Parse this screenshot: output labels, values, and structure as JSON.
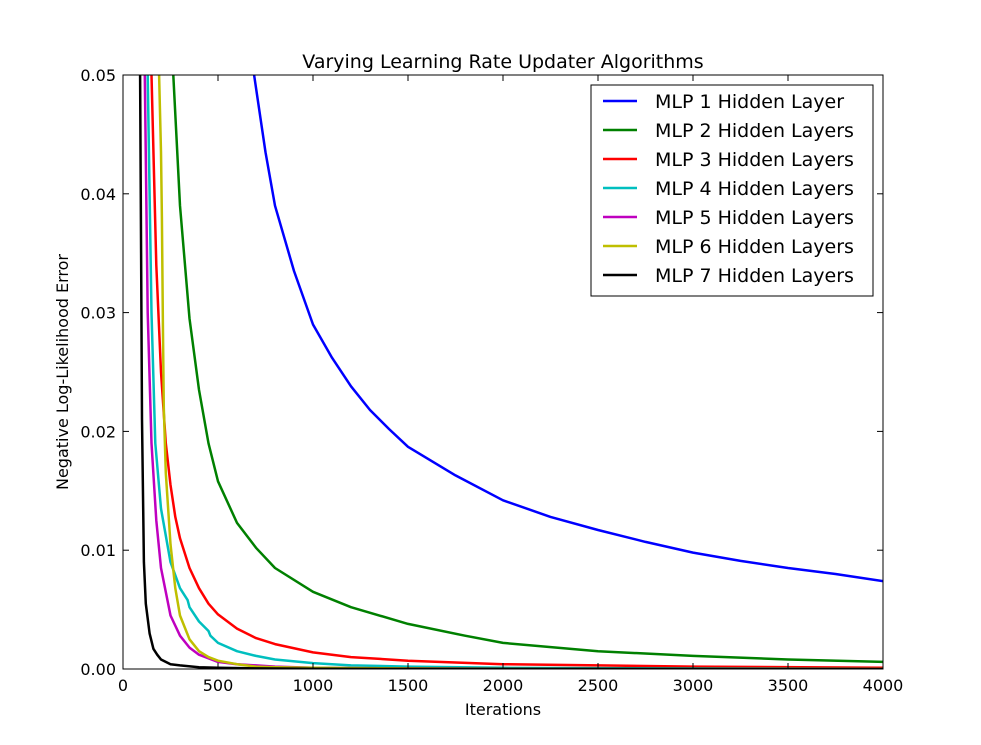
{
  "chart_data": {
    "type": "line",
    "title": "Varying Learning Rate Updater Algorithms",
    "xlabel": "Iterations",
    "ylabel": "Negative Log-Likelihood Error",
    "xlim": [
      0,
      4000
    ],
    "ylim": [
      0,
      0.05
    ],
    "xticks": [
      0,
      500,
      1000,
      1500,
      2000,
      2500,
      3000,
      3500,
      4000
    ],
    "yticks": [
      0.0,
      0.01,
      0.02,
      0.03,
      0.04,
      0.05
    ],
    "xtick_labels": [
      "0",
      "500",
      "1000",
      "1500",
      "2000",
      "2500",
      "3000",
      "3500",
      "4000"
    ],
    "ytick_labels": [
      "0.00",
      "0.01",
      "0.02",
      "0.03",
      "0.04",
      "0.05"
    ],
    "grid": false,
    "legend_position": "top-right",
    "series": [
      {
        "name": "MLP 1 Hidden Layer",
        "color": "#0000ff",
        "x": [
          690,
          750,
          800,
          900,
          1000,
          1100,
          1200,
          1300,
          1400,
          1500,
          1750,
          2000,
          2250,
          2500,
          2750,
          3000,
          3250,
          3500,
          3750,
          4000
        ],
        "y": [
          0.05,
          0.0435,
          0.039,
          0.0335,
          0.029,
          0.0262,
          0.0238,
          0.0218,
          0.0202,
          0.0187,
          0.0163,
          0.0142,
          0.0128,
          0.0117,
          0.0107,
          0.0098,
          0.0091,
          0.0085,
          0.008,
          0.0074
        ]
      },
      {
        "name": "MLP 2 Hidden Layers",
        "color": "#008000",
        "x": [
          265,
          300,
          350,
          400,
          450,
          500,
          600,
          700,
          800,
          1000,
          1200,
          1500,
          1800,
          2000,
          2500,
          3000,
          3500,
          4000
        ],
        "y": [
          0.05,
          0.039,
          0.0295,
          0.0235,
          0.019,
          0.0158,
          0.0123,
          0.0102,
          0.0085,
          0.0065,
          0.0052,
          0.0038,
          0.0028,
          0.0022,
          0.0015,
          0.0011,
          0.0008,
          0.0006
        ]
      },
      {
        "name": "MLP 3 Hidden Layers",
        "color": "#ff0000",
        "x": [
          150,
          175,
          200,
          225,
          250,
          275,
          300,
          350,
          400,
          450,
          500,
          600,
          700,
          800,
          1000,
          1200,
          1500,
          2000,
          2500,
          3000,
          4000
        ],
        "y": [
          0.05,
          0.034,
          0.025,
          0.019,
          0.0155,
          0.0128,
          0.011,
          0.0085,
          0.0068,
          0.0055,
          0.0046,
          0.0034,
          0.0026,
          0.0021,
          0.0014,
          0.001,
          0.0007,
          0.0004,
          0.0003,
          0.0002,
          0.0001
        ]
      },
      {
        "name": "MLP 4 Hidden Layers",
        "color": "#00bfbf",
        "x": [
          130,
          150,
          170,
          200,
          250,
          300,
          340,
          350,
          400,
          450,
          460,
          500,
          600,
          700,
          800,
          1000,
          1200,
          1500,
          2000,
          3000,
          4000
        ],
        "y": [
          0.05,
          0.03,
          0.019,
          0.0135,
          0.009,
          0.0068,
          0.0058,
          0.0052,
          0.004,
          0.0032,
          0.0028,
          0.0022,
          0.0015,
          0.0011,
          0.0008,
          0.0005,
          0.0003,
          0.0002,
          0.0001,
          5e-05,
          2e-05
        ]
      },
      {
        "name": "MLP 5 Hidden Layers",
        "color": "#bf00bf",
        "x": [
          115,
          130,
          150,
          175,
          200,
          250,
          300,
          350,
          400,
          500,
          600,
          700,
          800,
          1000,
          1500,
          2000,
          4000
        ],
        "y": [
          0.05,
          0.03,
          0.019,
          0.0125,
          0.0085,
          0.0045,
          0.0028,
          0.0018,
          0.0012,
          0.0006,
          0.0004,
          0.0003,
          0.0002,
          0.0001,
          5e-05,
          2e-05,
          1e-05
        ]
      },
      {
        "name": "MLP 6 Hidden Layers",
        "color": "#bfbf00",
        "x": [
          190,
          200,
          205,
          210,
          215,
          225,
          250,
          275,
          300,
          350,
          400,
          450,
          500,
          600,
          700,
          800,
          1000,
          1500,
          2000,
          4000
        ],
        "y": [
          0.05,
          0.0435,
          0.038,
          0.029,
          0.022,
          0.0165,
          0.0105,
          0.0068,
          0.0045,
          0.0025,
          0.0015,
          0.001,
          0.0007,
          0.0004,
          0.0002,
          0.00015,
          0.0001,
          5e-05,
          2e-05,
          1e-05
        ]
      },
      {
        "name": "MLP 7 Hidden Layers",
        "color": "#000000",
        "x": [
          90,
          95,
          100,
          110,
          120,
          140,
          160,
          180,
          200,
          250,
          300,
          400,
          500,
          700,
          1000,
          2000,
          4000
        ],
        "y": [
          0.05,
          0.035,
          0.021,
          0.009,
          0.0055,
          0.003,
          0.0017,
          0.0012,
          0.0008,
          0.0004,
          0.0003,
          0.00015,
          0.0001,
          5e-05,
          2e-05,
          1e-05,
          0.0
        ]
      }
    ]
  }
}
